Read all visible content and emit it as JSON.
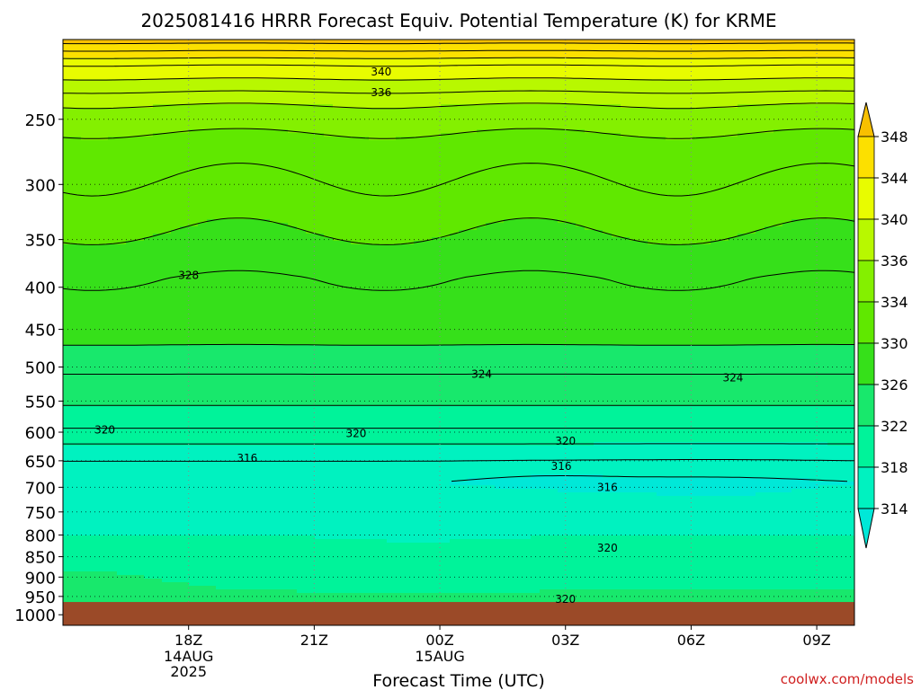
{
  "chart_data": {
    "type": "contour",
    "title": "2025081416 HRRR Forecast Equiv. Potential Temperature (K) for KRME",
    "xlabel": "Forecast Time (UTC)",
    "ylabel": "",
    "watermark": "coolwx.com/models",
    "x_ticks": [
      {
        "label": "18Z",
        "sub": [
          "14AUG",
          "2025"
        ],
        "hour": 18
      },
      {
        "label": "21Z",
        "sub": [],
        "hour": 21
      },
      {
        "label": "00Z",
        "sub": [
          "15AUG"
        ],
        "hour": 24
      },
      {
        "label": "03Z",
        "sub": [],
        "hour": 27
      },
      {
        "label": "06Z",
        "sub": [],
        "hour": 30
      },
      {
        "label": "09Z",
        "sub": [],
        "hour": 33
      }
    ],
    "xlim": [
      15,
      33.9
    ],
    "y_ticks": [
      250,
      300,
      350,
      400,
      450,
      500,
      550,
      600,
      650,
      700,
      750,
      800,
      850,
      900,
      950,
      1000
    ],
    "ylim_hpa": [
      200,
      1030
    ],
    "surface_pressure_hpa": 965,
    "colorbar": {
      "ticks": [
        314,
        318,
        322,
        326,
        330,
        334,
        336,
        340,
        344,
        348
      ],
      "levels": [
        310,
        314,
        318,
        322,
        326,
        330,
        334,
        336,
        340,
        344,
        348,
        352
      ],
      "colors": [
        "#00e8d8",
        "#00f2c0",
        "#00f39a",
        "#18e86c",
        "#36e01a",
        "#60e800",
        "#84f000",
        "#b8f800",
        "#e8fc00",
        "#fce000",
        "#f8c000"
      ]
    },
    "contour_interval_k": 2,
    "contour_labels": [
      {
        "value": "340",
        "hour": 22.6,
        "p": 219
      },
      {
        "value": "336",
        "hour": 22.6,
        "p": 232
      },
      {
        "value": "328",
        "hour": 18.0,
        "p": 387
      },
      {
        "value": "324",
        "hour": 25.0,
        "p": 510
      },
      {
        "value": "324",
        "hour": 31.0,
        "p": 515
      },
      {
        "value": "320",
        "hour": 16.0,
        "p": 596
      },
      {
        "value": "320",
        "hour": 22.0,
        "p": 602
      },
      {
        "value": "320",
        "hour": 27.0,
        "p": 615
      },
      {
        "value": "316",
        "hour": 19.4,
        "p": 645
      },
      {
        "value": "316",
        "hour": 26.9,
        "p": 660
      },
      {
        "value": "316",
        "hour": 28.0,
        "p": 700
      },
      {
        "value": "320",
        "hour": 28.0,
        "p": 830
      },
      {
        "value": "320",
        "hour": 27.0,
        "p": 957
      }
    ],
    "profile": [
      {
        "p": 200,
        "theta_e": 349
      },
      {
        "p": 215,
        "theta_e": 342
      },
      {
        "p": 240,
        "theta_e": 336
      },
      {
        "p": 270,
        "theta_e": 333
      },
      {
        "p": 320,
        "theta_e": 331
      },
      {
        "p": 390,
        "theta_e": 328
      },
      {
        "p": 450,
        "theta_e": 327
      },
      {
        "p": 510,
        "theta_e": 324
      },
      {
        "p": 580,
        "theta_e": 321
      },
      {
        "p": 640,
        "theta_e": 316.5
      },
      {
        "p": 690,
        "theta_e": 314.2
      },
      {
        "p": 740,
        "theta_e": 316
      },
      {
        "p": 800,
        "theta_e": 318
      },
      {
        "p": 870,
        "theta_e": 320
      },
      {
        "p": 930,
        "theta_e": 322
      },
      {
        "p": 965,
        "theta_e": 323
      }
    ]
  }
}
